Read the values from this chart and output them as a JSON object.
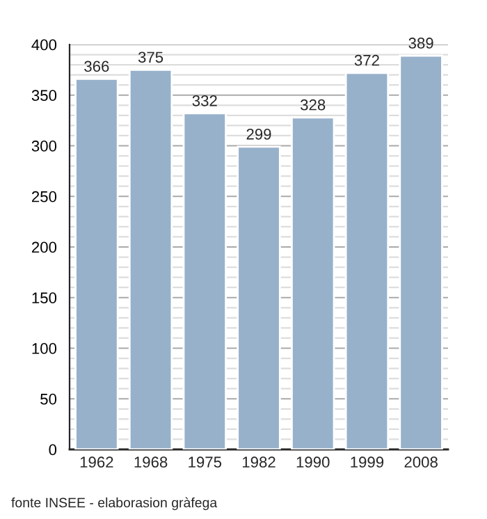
{
  "chart_data": {
    "type": "bar",
    "categories": [
      "1962",
      "1968",
      "1975",
      "1982",
      "1990",
      "1999",
      "2008"
    ],
    "values": [
      366,
      375,
      332,
      299,
      328,
      372,
      389
    ],
    "color": "#97b1cb",
    "data_labels": true,
    "ylim": [
      0,
      400
    ],
    "yticks": [
      0,
      {
        "value": 10,
        "label": null
      },
      {
        "value": 20,
        "label": null
      },
      {
        "value": 30,
        "label": null
      },
      {
        "value": 40,
        "label": null
      },
      50,
      {
        "value": 60,
        "label": null
      },
      {
        "value": 70,
        "label": null
      },
      {
        "value": 80,
        "label": null
      },
      {
        "value": 90,
        "label": null
      },
      100,
      {
        "value": 110,
        "label": null
      },
      {
        "value": 120,
        "label": null
      },
      {
        "value": 130,
        "label": null
      },
      {
        "value": 140,
        "label": null
      },
      150,
      {
        "value": 160,
        "label": null
      },
      {
        "value": 170,
        "label": null
      },
      {
        "value": 180,
        "label": null
      },
      {
        "value": 190,
        "label": null
      },
      200,
      {
        "value": 210,
        "label": null
      },
      {
        "value": 220,
        "label": null
      },
      {
        "value": 230,
        "label": null
      },
      {
        "value": 240,
        "label": null
      },
      250,
      {
        "value": 260,
        "label": null
      },
      {
        "value": 270,
        "label": null
      },
      {
        "value": 280,
        "label": null
      },
      {
        "value": 290,
        "label": null
      },
      300,
      {
        "value": 310,
        "label": null
      },
      {
        "value": 320,
        "label": null
      },
      {
        "value": 330,
        "label": null
      },
      {
        "value": 340,
        "label": null
      },
      350,
      {
        "value": 360,
        "label": null
      },
      {
        "value": 370,
        "label": null
      },
      {
        "value": 380,
        "label": null
      },
      {
        "value": 390,
        "label": null
      },
      400
    ],
    "grid": "y",
    "annotations": [
      "fonte INSEE - elaborasion gràfega"
    ]
  }
}
